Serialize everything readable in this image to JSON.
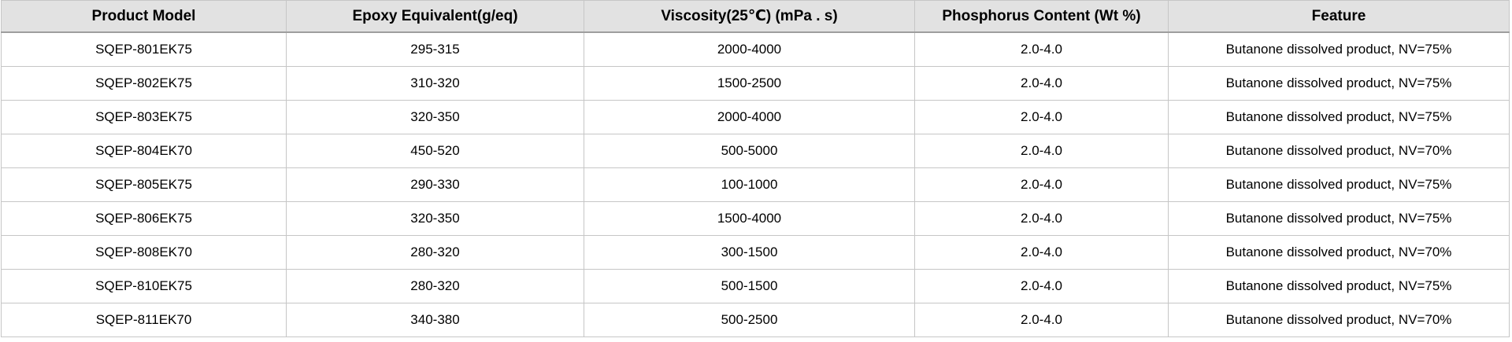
{
  "table": {
    "columns": [
      "Product Model",
      "Epoxy Equivalent(g/eq)",
      "Viscosity(25℃) (mPa . s)",
      "Phosphorus Content (Wt %)",
      "Feature"
    ],
    "rows": [
      {
        "model": "SQEP-801EK75",
        "epoxy_equivalent": "295-315",
        "viscosity": "2000-4000",
        "phosphorus": "2.0-4.0",
        "feature": "Butanone dissolved product, NV=75%"
      },
      {
        "model": "SQEP-802EK75",
        "epoxy_equivalent": "310-320",
        "viscosity": "1500-2500",
        "phosphorus": "2.0-4.0",
        "feature": "Butanone dissolved product, NV=75%"
      },
      {
        "model": "SQEP-803EK75",
        "epoxy_equivalent": "320-350",
        "viscosity": "2000-4000",
        "phosphorus": "2.0-4.0",
        "feature": "Butanone dissolved product, NV=75%"
      },
      {
        "model": "SQEP-804EK70",
        "epoxy_equivalent": "450-520",
        "viscosity": "500-5000",
        "phosphorus": "2.0-4.0",
        "feature": "Butanone dissolved product, NV=70%"
      },
      {
        "model": "SQEP-805EK75",
        "epoxy_equivalent": "290-330",
        "viscosity": "100-1000",
        "phosphorus": "2.0-4.0",
        "feature": "Butanone dissolved product, NV=75%"
      },
      {
        "model": "SQEP-806EK75",
        "epoxy_equivalent": "320-350",
        "viscosity": "1500-4000",
        "phosphorus": "2.0-4.0",
        "feature": "Butanone dissolved product, NV=75%"
      },
      {
        "model": "SQEP-808EK70",
        "epoxy_equivalent": "280-320",
        "viscosity": "300-1500",
        "phosphorus": "2.0-4.0",
        "feature": "Butanone dissolved product, NV=70%"
      },
      {
        "model": "SQEP-810EK75",
        "epoxy_equivalent": "280-320",
        "viscosity": "500-1500",
        "phosphorus": "2.0-4.0",
        "feature": "Butanone dissolved product, NV=75%"
      },
      {
        "model": "SQEP-811EK70",
        "epoxy_equivalent": "340-380",
        "viscosity": "500-2500",
        "phosphorus": "2.0-4.0",
        "feature": "Butanone dissolved product, NV=70%"
      }
    ]
  },
  "colors": {
    "header_bg": "#e2e2e2",
    "grid_border": "#c6c6c6",
    "header_bottom_border": "#9e9e9e",
    "row_bg": "#ffffff",
    "text": "#000000"
  }
}
